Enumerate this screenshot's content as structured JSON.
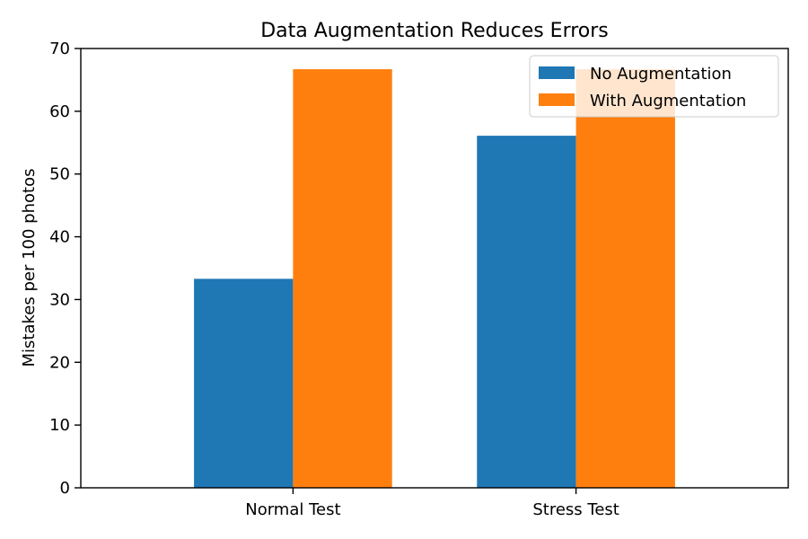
{
  "chart_data": {
    "type": "bar",
    "title": "Data Augmentation Reduces Errors",
    "xlabel": "",
    "ylabel": "Mistakes per 100 photos",
    "categories": [
      "Normal Test",
      "Stress Test"
    ],
    "series": [
      {
        "name": "No Augmentation",
        "color": "#1f77b4",
        "values": [
          33.3,
          56.1
        ]
      },
      {
        "name": "With Augmentation",
        "color": "#ff7f0e",
        "values": [
          66.7,
          66.7
        ]
      }
    ],
    "ylim": [
      0,
      70
    ],
    "yticks": [
      0,
      10,
      20,
      30,
      40,
      50,
      60,
      70
    ],
    "grid": false,
    "legend_position": "top-right"
  }
}
